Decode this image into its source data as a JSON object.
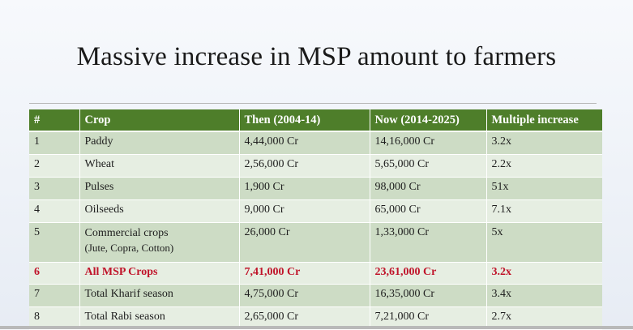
{
  "title": "Massive increase in MSP amount to farmers",
  "table": {
    "headers": [
      "#",
      "Crop",
      "Then (2004-14)",
      "Now (2014-2025)",
      "Multiple increase"
    ],
    "rows": [
      {
        "num": "1",
        "crop": "Paddy",
        "crop_sub": "",
        "then": "4,44,000 Cr",
        "now": "14,16,000 Cr",
        "multiple": "3.2x"
      },
      {
        "num": "2",
        "crop": "Wheat",
        "crop_sub": "",
        "then": "2,56,000 Cr",
        "now": "5,65,000 Cr",
        "multiple": "2.2x"
      },
      {
        "num": "3",
        "crop": "Pulses",
        "crop_sub": "",
        "then": "1,900 Cr",
        "now": "98,000 Cr",
        "multiple": "51x"
      },
      {
        "num": "4",
        "crop": "Oilseeds",
        "crop_sub": "",
        "then": "9,000 Cr",
        "now": "65,000 Cr",
        "multiple": "7.1x"
      },
      {
        "num": "5",
        "crop": "Commercial crops",
        "crop_sub": "(Jute, Copra, Cotton)",
        "then": "26,000 Cr",
        "now": "1,33,000 Cr",
        "multiple": "5x"
      },
      {
        "num": "6",
        "crop": "All MSP Crops",
        "crop_sub": "",
        "then": "7,41,000 Cr",
        "now": "23,61,000 Cr",
        "multiple": "3.2x"
      },
      {
        "num": "7",
        "crop": "Total Kharif season",
        "crop_sub": "",
        "then": "4,75,000 Cr",
        "now": "16,35,000 Cr",
        "multiple": "3.4x"
      },
      {
        "num": "8",
        "crop": "Total Rabi season",
        "crop_sub": "",
        "then": "2,65,000 Cr",
        "now": "7,21,000 Cr",
        "multiple": "2.7x"
      }
    ]
  },
  "colors": {
    "header_bg": "#4e7e2a",
    "row_dark": "#cddcc5",
    "row_light": "#e6eee2",
    "highlight_text": "#c0142a"
  }
}
